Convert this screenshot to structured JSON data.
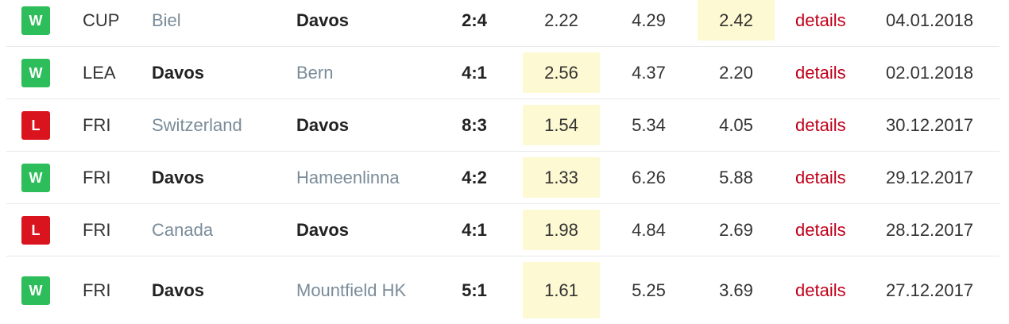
{
  "table": {
    "rows": [
      [
        "W",
        "CUP",
        "Biel",
        "Davos",
        "2:4",
        "2.22",
        "4.29",
        "2.42",
        "details",
        "04.01.2018"
      ],
      [
        "W",
        "LEA",
        "Davos",
        "Bern",
        "4:1",
        "2.56",
        "4.37",
        "2.20",
        "details",
        "02.01.2018"
      ],
      [
        "L",
        "FRI",
        "Switzerland",
        "Davos",
        "8:3",
        "1.54",
        "5.34",
        "4.05",
        "details",
        "30.12.2017"
      ],
      [
        "W",
        "FRI",
        "Davos",
        "Hameenlinna",
        "4:2",
        "1.33",
        "6.26",
        "5.88",
        "details",
        "29.12.2017"
      ],
      [
        "L",
        "FRI",
        "Canada",
        "Davos",
        "4:1",
        "1.98",
        "4.84",
        "2.69",
        "details",
        "28.12.2017"
      ],
      [
        "W",
        "FRI",
        "Davos",
        "Mountfield HK",
        "5:1",
        "1.61",
        "5.25",
        "3.69",
        "details",
        "27.12.2017"
      ]
    ]
  }
}
